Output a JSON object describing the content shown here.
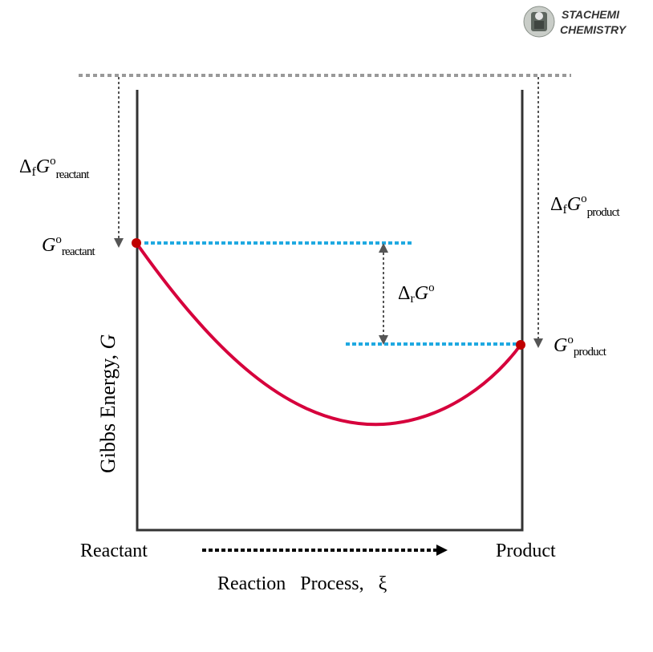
{
  "brand": {
    "line1": "STACHEMI",
    "line2": "CHEMISTRY",
    "logo_icon": "stachemi-logo-icon"
  },
  "labels": {
    "y_axis_prefix": "Gibbs Energy, ",
    "y_axis_symbol": "G",
    "x_axis_prefix": "Reaction   Process,   ",
    "x_axis_symbol": "ξ",
    "reactant": "Reactant",
    "product": "Product",
    "delta_symbol": "Δ",
    "formation_sub": "f",
    "reaction_sub": "r",
    "G": "G",
    "degree": "o",
    "sub_reactant": "reactant",
    "sub_product": "product"
  },
  "colors": {
    "curve": "#d6003c",
    "endpoint": "#c00000",
    "level_line": "#1fa9e1",
    "reference_line": "#999999",
    "frame": "#333333",
    "arrow": "#555555",
    "process_arrow": "#000000"
  }
}
